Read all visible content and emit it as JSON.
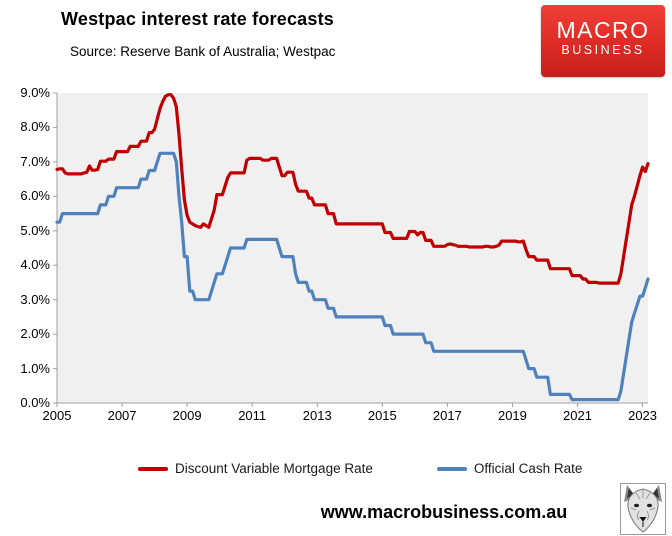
{
  "header": {
    "title": "Westpac interest rate forecasts",
    "source": "Source: Reserve Bank of Australia; Westpac"
  },
  "logo": {
    "line1": "MACRO",
    "line2": "BUSINESS"
  },
  "footer": {
    "url": "www.macrobusiness.com.au",
    "wolf_logo": "wolf-head-sketch"
  },
  "chart_data": {
    "type": "line",
    "title": "Westpac interest rate forecasts",
    "xlabel": "",
    "ylabel": "",
    "ylim": [
      0,
      9
    ],
    "y_ticks": [
      "9.0%",
      "8.0%",
      "7.0%",
      "6.0%",
      "5.0%",
      "4.0%",
      "3.0%",
      "2.0%",
      "1.0%",
      "0.0%"
    ],
    "x_ticks": [
      "2005",
      "2007",
      "2009",
      "2011",
      "2013",
      "2015",
      "2017",
      "2019",
      "2021",
      "2023"
    ],
    "x_start": "2005-01",
    "x_end": "2023-03",
    "frequency": "monthly",
    "months_per_x_tick": 24,
    "grid": false,
    "plot_bg": "#f0f0f0",
    "axis_color": "#a0a0a0",
    "legend_position": "bottom",
    "series": [
      {
        "name": "Discount Variable Mortgage Rate",
        "color": "#c00000",
        "values": [
          6.78,
          6.8,
          6.8,
          6.68,
          6.65,
          6.65,
          6.65,
          6.65,
          6.65,
          6.65,
          6.68,
          6.7,
          6.88,
          6.76,
          6.76,
          6.78,
          7.02,
          7.02,
          7.02,
          7.08,
          7.08,
          7.08,
          7.3,
          7.3,
          7.3,
          7.3,
          7.3,
          7.45,
          7.45,
          7.45,
          7.45,
          7.6,
          7.6,
          7.6,
          7.85,
          7.85,
          7.95,
          8.25,
          8.55,
          8.75,
          8.9,
          8.95,
          8.95,
          8.85,
          8.6,
          7.8,
          6.8,
          5.9,
          5.45,
          5.25,
          5.2,
          5.15,
          5.12,
          5.1,
          5.2,
          5.15,
          5.1,
          5.35,
          5.6,
          6.05,
          6.05,
          6.05,
          6.3,
          6.55,
          6.68,
          6.68,
          6.68,
          6.68,
          6.68,
          6.68,
          7.05,
          7.1,
          7.1,
          7.1,
          7.1,
          7.1,
          7.05,
          7.05,
          7.05,
          7.1,
          7.1,
          7.1,
          6.85,
          6.6,
          6.6,
          6.7,
          6.7,
          6.7,
          6.35,
          6.15,
          6.15,
          6.15,
          6.15,
          5.95,
          5.95,
          5.75,
          5.75,
          5.75,
          5.75,
          5.75,
          5.5,
          5.5,
          5.5,
          5.2,
          5.2,
          5.2,
          5.2,
          5.2,
          5.2,
          5.2,
          5.2,
          5.2,
          5.2,
          5.2,
          5.2,
          5.2,
          5.2,
          5.2,
          5.2,
          5.2,
          5.2,
          4.95,
          4.95,
          4.95,
          4.78,
          4.78,
          4.78,
          4.78,
          4.78,
          4.78,
          4.98,
          4.98,
          4.98,
          4.88,
          4.95,
          4.95,
          4.72,
          4.72,
          4.72,
          4.55,
          4.55,
          4.55,
          4.55,
          4.55,
          4.6,
          4.62,
          4.6,
          4.58,
          4.55,
          4.55,
          4.55,
          4.55,
          4.53,
          4.53,
          4.53,
          4.53,
          4.53,
          4.53,
          4.55,
          4.55,
          4.53,
          4.53,
          4.55,
          4.58,
          4.7,
          4.7,
          4.7,
          4.7,
          4.7,
          4.7,
          4.68,
          4.68,
          4.7,
          4.45,
          4.25,
          4.25,
          4.25,
          4.15,
          4.15,
          4.15,
          4.15,
          4.15,
          3.9,
          3.9,
          3.9,
          3.9,
          3.9,
          3.9,
          3.9,
          3.9,
          3.7,
          3.7,
          3.7,
          3.7,
          3.6,
          3.6,
          3.5,
          3.5,
          3.5,
          3.5,
          3.48,
          3.48,
          3.48,
          3.48,
          3.48,
          3.48,
          3.48,
          3.48,
          3.75,
          4.25,
          4.75,
          5.25,
          5.75,
          6.0,
          6.3,
          6.6,
          6.85,
          6.72,
          6.95
        ]
      },
      {
        "name": "Official Cash Rate",
        "color": "#4f81bd",
        "values": [
          5.25,
          5.25,
          5.5,
          5.5,
          5.5,
          5.5,
          5.5,
          5.5,
          5.5,
          5.5,
          5.5,
          5.5,
          5.5,
          5.5,
          5.5,
          5.5,
          5.75,
          5.75,
          5.75,
          6.0,
          6.0,
          6.0,
          6.25,
          6.25,
          6.25,
          6.25,
          6.25,
          6.25,
          6.25,
          6.25,
          6.25,
          6.5,
          6.5,
          6.5,
          6.75,
          6.75,
          6.75,
          7.0,
          7.25,
          7.25,
          7.25,
          7.25,
          7.25,
          7.25,
          7.0,
          6.0,
          5.25,
          4.25,
          4.25,
          3.25,
          3.25,
          3.0,
          3.0,
          3.0,
          3.0,
          3.0,
          3.0,
          3.25,
          3.5,
          3.75,
          3.75,
          3.75,
          4.0,
          4.25,
          4.5,
          4.5,
          4.5,
          4.5,
          4.5,
          4.5,
          4.75,
          4.75,
          4.75,
          4.75,
          4.75,
          4.75,
          4.75,
          4.75,
          4.75,
          4.75,
          4.75,
          4.75,
          4.5,
          4.25,
          4.25,
          4.25,
          4.25,
          4.25,
          3.75,
          3.5,
          3.5,
          3.5,
          3.5,
          3.25,
          3.25,
          3.0,
          3.0,
          3.0,
          3.0,
          3.0,
          2.75,
          2.75,
          2.75,
          2.5,
          2.5,
          2.5,
          2.5,
          2.5,
          2.5,
          2.5,
          2.5,
          2.5,
          2.5,
          2.5,
          2.5,
          2.5,
          2.5,
          2.5,
          2.5,
          2.5,
          2.5,
          2.25,
          2.25,
          2.25,
          2.0,
          2.0,
          2.0,
          2.0,
          2.0,
          2.0,
          2.0,
          2.0,
          2.0,
          2.0,
          2.0,
          2.0,
          1.75,
          1.75,
          1.75,
          1.5,
          1.5,
          1.5,
          1.5,
          1.5,
          1.5,
          1.5,
          1.5,
          1.5,
          1.5,
          1.5,
          1.5,
          1.5,
          1.5,
          1.5,
          1.5,
          1.5,
          1.5,
          1.5,
          1.5,
          1.5,
          1.5,
          1.5,
          1.5,
          1.5,
          1.5,
          1.5,
          1.5,
          1.5,
          1.5,
          1.5,
          1.5,
          1.5,
          1.5,
          1.25,
          1.0,
          1.0,
          1.0,
          0.75,
          0.75,
          0.75,
          0.75,
          0.75,
          0.25,
          0.25,
          0.25,
          0.25,
          0.25,
          0.25,
          0.25,
          0.25,
          0.1,
          0.1,
          0.1,
          0.1,
          0.1,
          0.1,
          0.1,
          0.1,
          0.1,
          0.1,
          0.1,
          0.1,
          0.1,
          0.1,
          0.1,
          0.1,
          0.1,
          0.1,
          0.35,
          0.85,
          1.35,
          1.85,
          2.35,
          2.6,
          2.85,
          3.1,
          3.1,
          3.35,
          3.6
        ]
      }
    ]
  }
}
